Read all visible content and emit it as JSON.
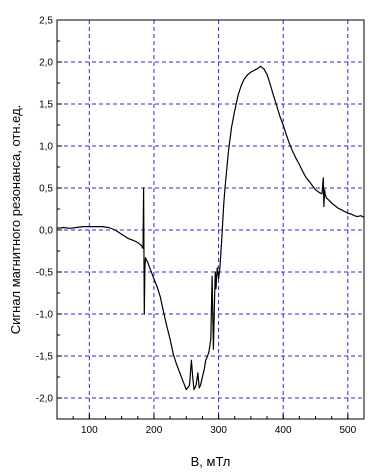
{
  "chart_data": {
    "type": "line",
    "title": "",
    "xlabel": "B, мТл",
    "ylabel": "Сигнал магнитного резонанса, отн.ед.",
    "xlim": [
      50,
      525
    ],
    "ylim": [
      -2.25,
      2.5
    ],
    "grid": true,
    "grid_color": "#2b2bd6",
    "line_color": "#000000",
    "xticks": [
      {
        "value": 100,
        "label": "100"
      },
      {
        "value": 200,
        "label": "200"
      },
      {
        "value": 300,
        "label": "300"
      },
      {
        "value": 400,
        "label": "400"
      },
      {
        "value": 500,
        "label": "500"
      }
    ],
    "yticks": [
      {
        "value": 2.5,
        "label": "2,5"
      },
      {
        "value": 2.0,
        "label": "2,0"
      },
      {
        "value": 1.5,
        "label": "1,5"
      },
      {
        "value": 1.0,
        "label": "1,0"
      },
      {
        "value": 0.5,
        "label": "0,5"
      },
      {
        "value": 0.0,
        "label": "0,0"
      },
      {
        "value": -0.5,
        "label": "-0,5"
      },
      {
        "value": -1.0,
        "label": "-1,0"
      },
      {
        "value": -1.5,
        "label": "-1,5"
      },
      {
        "value": -2.0,
        "label": "-2,0"
      }
    ],
    "series": [
      {
        "x": [
          50,
          60,
          70,
          80,
          90,
          100,
          110,
          120,
          130,
          140,
          150,
          160,
          170,
          175,
          180,
          183,
          184,
          185,
          186,
          187,
          188,
          190,
          195,
          200,
          205,
          210,
          215,
          220,
          225,
          230,
          235,
          240,
          245,
          250,
          255,
          258,
          260,
          262,
          265,
          268,
          270,
          272,
          275,
          278,
          280,
          283,
          285,
          288,
          290,
          292,
          294,
          295,
          296,
          297,
          298,
          300,
          302,
          305,
          308,
          310,
          315,
          320,
          325,
          330,
          335,
          340,
          345,
          350,
          355,
          360,
          365,
          368,
          370,
          375,
          380,
          385,
          390,
          395,
          400,
          405,
          410,
          415,
          420,
          425,
          430,
          435,
          440,
          445,
          450,
          455,
          460,
          462,
          463,
          464,
          465,
          467,
          470,
          475,
          480,
          485,
          490,
          495,
          500,
          505,
          510,
          515,
          520,
          525
        ],
        "y": [
          0.02,
          0.03,
          0.02,
          0.03,
          0.04,
          0.04,
          0.04,
          0.04,
          0.03,
          0.0,
          -0.05,
          -0.1,
          -0.13,
          -0.15,
          -0.18,
          -0.22,
          0.5,
          -1.0,
          -0.45,
          -0.33,
          -0.35,
          -0.38,
          -0.48,
          -0.58,
          -0.68,
          -0.8,
          -0.98,
          -1.15,
          -1.3,
          -1.48,
          -1.6,
          -1.7,
          -1.8,
          -1.9,
          -1.85,
          -1.55,
          -1.75,
          -1.9,
          -1.85,
          -1.7,
          -1.88,
          -1.85,
          -1.75,
          -1.65,
          -1.55,
          -1.5,
          -1.45,
          -1.3,
          -0.55,
          -1.42,
          -0.75,
          -0.5,
          -0.7,
          -0.55,
          -0.45,
          -0.58,
          -0.45,
          -0.1,
          0.3,
          0.5,
          0.92,
          1.22,
          1.42,
          1.6,
          1.72,
          1.8,
          1.85,
          1.88,
          1.9,
          1.92,
          1.95,
          1.93,
          1.92,
          1.85,
          1.73,
          1.6,
          1.48,
          1.35,
          1.25,
          1.13,
          1.02,
          0.93,
          0.85,
          0.78,
          0.7,
          0.63,
          0.58,
          0.53,
          0.48,
          0.45,
          0.43,
          0.62,
          0.28,
          0.48,
          0.42,
          0.38,
          0.36,
          0.32,
          0.29,
          0.26,
          0.24,
          0.22,
          0.2,
          0.19,
          0.17,
          0.16,
          0.17,
          0.15
        ]
      }
    ]
  }
}
